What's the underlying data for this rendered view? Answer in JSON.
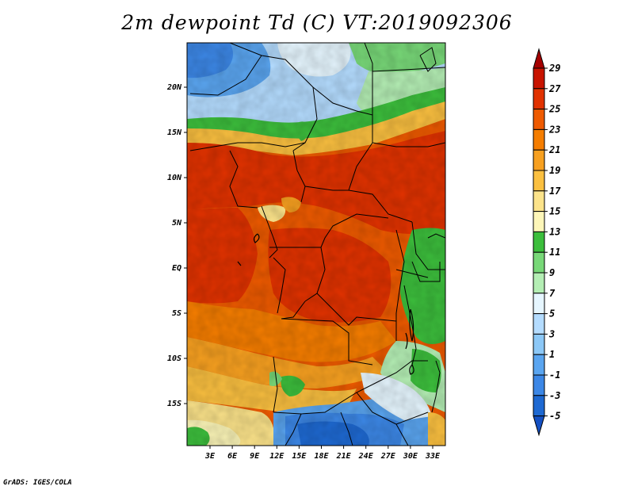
{
  "title": "2m dewpoint Td (C) VT:2019092306",
  "credit": "GrADS: IGES/COLA",
  "map": {
    "lat_ticks": [
      "20N",
      "15N",
      "10N",
      "5N",
      "EQ",
      "5S",
      "10S",
      "15S"
    ],
    "lon_ticks": [
      "3E",
      "6E",
      "9E",
      "12E",
      "15E",
      "18E",
      "21E",
      "24E",
      "27E",
      "30E",
      "33E"
    ]
  },
  "colorbar": {
    "levels": [
      "29",
      "27",
      "25",
      "23",
      "21",
      "19",
      "17",
      "15",
      "13",
      "11",
      "9",
      "7",
      "5",
      "3",
      "1",
      "-1",
      "-3",
      "-5"
    ],
    "colors": [
      "#a50000",
      "#c81400",
      "#e13200",
      "#ee5a00",
      "#f57d00",
      "#f7a020",
      "#fbc040",
      "#fce38a",
      "#fdf6b8",
      "#3cbe3c",
      "#78d878",
      "#b4eeb4",
      "#e6f6ff",
      "#b4dcff",
      "#8cc8f7",
      "#5aa5f0",
      "#3c87e6",
      "#1e69d2",
      "#1450c3"
    ]
  }
}
